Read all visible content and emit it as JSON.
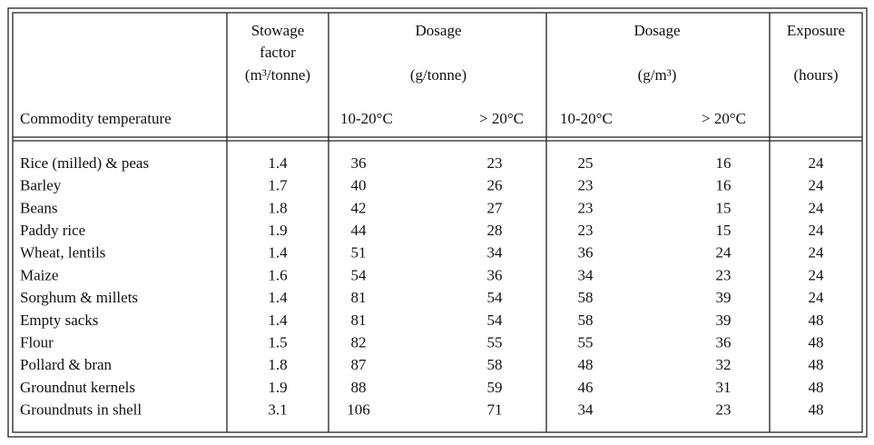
{
  "header": {
    "stowage": [
      "Stowage",
      "factor",
      "(m³/tonne)"
    ],
    "dosage_tonne": [
      "Dosage",
      "(g/tonne)"
    ],
    "dosage_m3": [
      "Dosage",
      "(g/m³)"
    ],
    "exposure": [
      "Exposure",
      "(hours)"
    ]
  },
  "subheader": {
    "label": "Commodity temperature",
    "columns": [
      "10-20°C",
      "> 20°C",
      "10-20°C",
      "> 20°C"
    ]
  },
  "table": {
    "rows": [
      [
        "Rice (milled) & peas",
        1.4,
        36,
        23,
        25,
        16,
        24
      ],
      [
        "Barley",
        1.7,
        40,
        26,
        23,
        16,
        24
      ],
      [
        "Beans",
        1.8,
        42,
        27,
        23,
        15,
        24
      ],
      [
        "Paddy rice",
        1.9,
        44,
        28,
        23,
        15,
        24
      ],
      [
        "Wheat, lentils",
        1.4,
        51,
        34,
        36,
        24,
        24
      ],
      [
        "Maize",
        1.6,
        54,
        36,
        34,
        23,
        24
      ],
      [
        "Sorghum & millets",
        1.4,
        81,
        54,
        58,
        39,
        24
      ],
      [
        "Empty sacks",
        1.4,
        81,
        54,
        58,
        39,
        48
      ],
      [
        "Flour",
        1.5,
        82,
        55,
        55,
        36,
        48
      ],
      [
        "Pollard & bran",
        1.8,
        87,
        58,
        48,
        32,
        48
      ],
      [
        "Groundnut kernels",
        1.9,
        88,
        59,
        46,
        31,
        48
      ],
      [
        "Groundnuts in shell",
        3.1,
        106,
        71,
        34,
        23,
        48
      ]
    ]
  }
}
